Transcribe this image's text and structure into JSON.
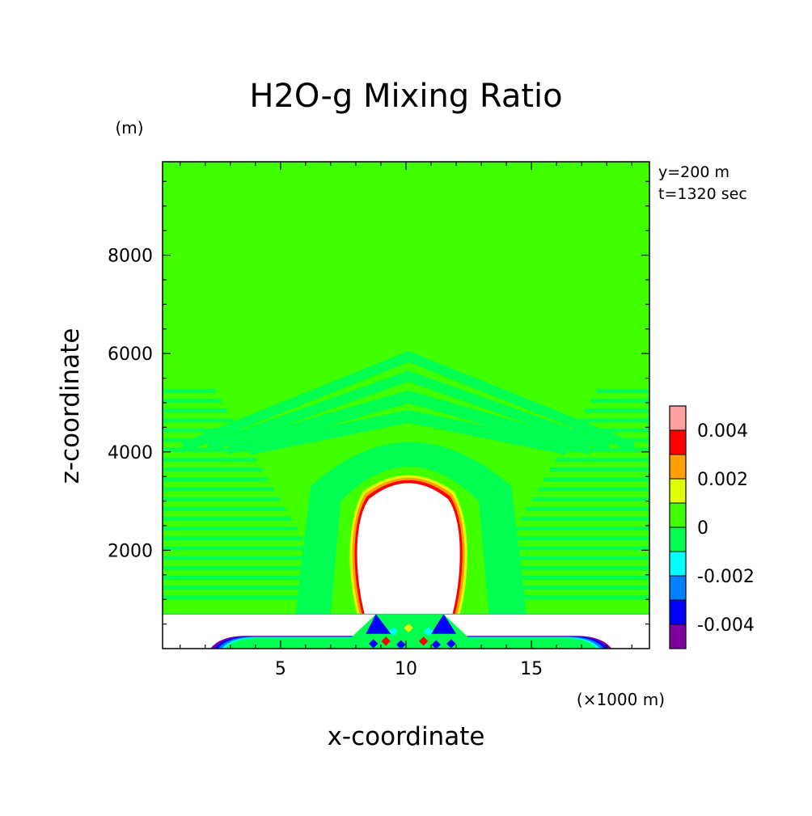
{
  "chart_data": {
    "type": "heatmap",
    "title": "H2O-g Mixing Ratio",
    "xlabel": "x-coordinate",
    "ylabel": "z-coordinate",
    "x_unit": "(×1000 m)",
    "y_unit": "(m)",
    "xlim": [
      0.3,
      19.7
    ],
    "ylim": [
      0,
      9900
    ],
    "x_ticks": [
      5,
      10,
      15
    ],
    "y_ticks": [
      2000,
      4000,
      6000,
      8000
    ],
    "annotations": [
      "y=200 m",
      "t=1320 sec"
    ],
    "ground_top_z": 700,
    "colorbar": {
      "levels": [
        -0.005,
        -0.004,
        -0.003,
        -0.002,
        -0.001,
        0,
        0.001,
        0.002,
        0.003,
        0.004,
        0.005
      ],
      "colors": [
        "#8000a0",
        "#0000ff",
        "#0080ff",
        "#00ffff",
        "#00ff50",
        "#40ff00",
        "#e0ff00",
        "#ffa000",
        "#ff0000",
        "#ffa0a0"
      ],
      "tick_labels": [
        "0.004",
        "0.002",
        "0",
        "-0.002",
        "-0.004"
      ],
      "tick_values": [
        0.004,
        0.002,
        0,
        -0.002,
        -0.004
      ]
    },
    "background_value_color": "#40ff00",
    "features": {
      "cloud_region_color": "#ffffff",
      "cloud_outline_colors": [
        "#ff0000",
        "#ffa000",
        "#e0ff00"
      ],
      "anomaly_arches_color": "#00ff50",
      "near_surface_band_colors": [
        "#8000a0",
        "#0000ff",
        "#0080ff",
        "#00ffff"
      ]
    }
  }
}
